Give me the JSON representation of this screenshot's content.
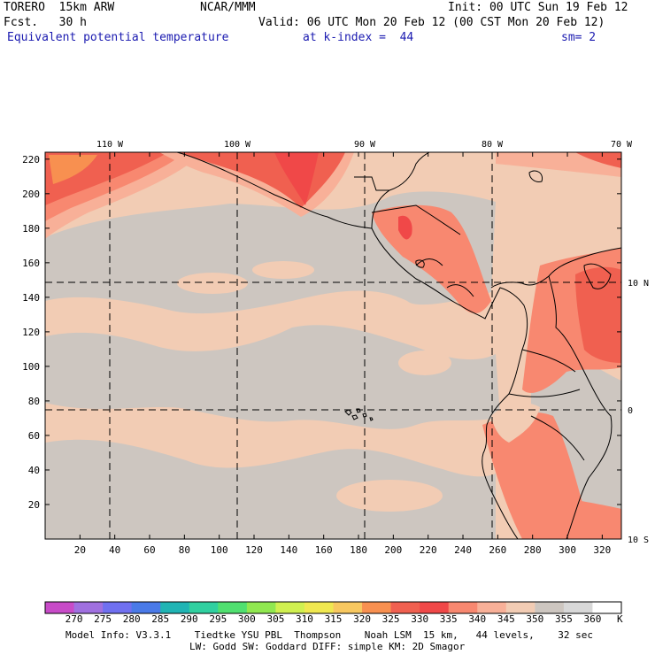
{
  "header": {
    "model": "TORERO  15km ARW",
    "center": "NCAR/MMM",
    "init": "Init: 00 UTC Sun 19 Feb 12",
    "fcst": "Fcst.   30 h",
    "valid": "Valid: 06 UTC Mon 20 Feb 12 (00 CST Mon 20 Feb 12)",
    "field": "Equivalent potential temperature",
    "level": "at k-index =  44",
    "smoothing": "sm= 2"
  },
  "map": {
    "lon_labels": [
      "110 W",
      "100 W",
      "90 W",
      "80 W",
      "70 W"
    ],
    "lat_labels": [
      "10 N",
      "0",
      "10 S"
    ],
    "y_ticks": [
      "20",
      "40",
      "60",
      "80",
      "100",
      "120",
      "140",
      "160",
      "180",
      "200",
      "220"
    ],
    "x_ticks": [
      "20",
      "40",
      "60",
      "80",
      "100",
      "120",
      "140",
      "160",
      "180",
      "200",
      "220",
      "240",
      "260",
      "280",
      "300",
      "320"
    ]
  },
  "colorbar": {
    "labels": [
      "270",
      "275",
      "280",
      "285",
      "290",
      "295",
      "300",
      "305",
      "310",
      "315",
      "320",
      "325",
      "330",
      "335",
      "340",
      "345",
      "350",
      "355",
      "360"
    ],
    "unit": "K",
    "colors": [
      "#c84bc8",
      "#a070e0",
      "#7070f0",
      "#4a7ae8",
      "#20b4b4",
      "#30d0a0",
      "#50e070",
      "#90e850",
      "#d0f050",
      "#f0e850",
      "#f8c860",
      "#f89050",
      "#f06050",
      "#f04848",
      "#f88870",
      "#f8b098",
      "#f2ccb4",
      "#cdc6c0",
      "#d8d8d8",
      "#ffffff"
    ]
  },
  "footer": {
    "line1": "Model Info: V3.3.1    Tiedtke YSU PBL  Thompson    Noah LSM  15 km,   44 levels,    32 sec",
    "line2": "LW: Godd SW: Goddard DIFF: simple KM: 2D Smagor"
  }
}
